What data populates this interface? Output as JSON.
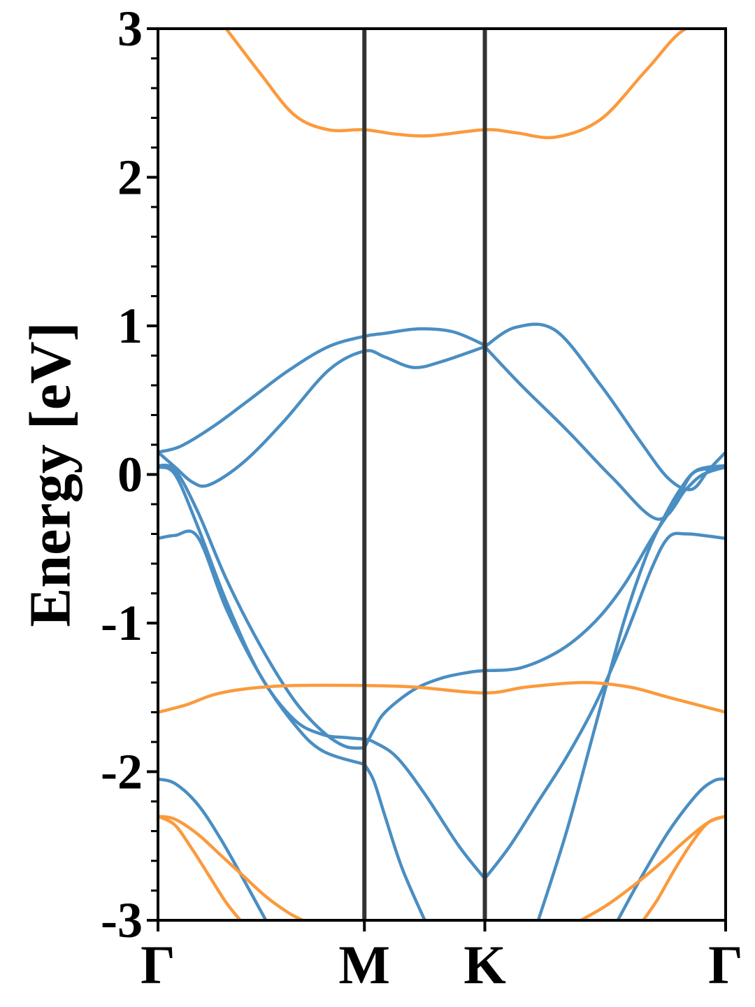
{
  "chart_data": {
    "type": "line",
    "title": "",
    "xlabel": "",
    "ylabel": "Energy [eV]",
    "ylim": [
      -3,
      3
    ],
    "xlim": [
      0,
      1
    ],
    "grid": false,
    "legend": "none",
    "high_symmetry_points": [
      {
        "label": "Γ",
        "x": 0.0
      },
      {
        "label": "M",
        "x": 0.3636
      },
      {
        "label": "K",
        "x": 0.5758
      },
      {
        "label": "Γ",
        "x": 1.0
      }
    ],
    "yticks": [
      {
        "value": 3,
        "label": "3"
      },
      {
        "value": 2,
        "label": "2"
      },
      {
        "value": 1,
        "label": "1"
      },
      {
        "value": 0,
        "label": "0"
      },
      {
        "value": -1,
        "label": "-1"
      },
      {
        "value": -2,
        "label": "-2"
      },
      {
        "value": -3,
        "label": "-3"
      }
    ],
    "colors": {
      "blue_bands": "#4a8ec2",
      "orange_bands": "#fb9a3c",
      "kpath_lines": "#333333",
      "axes": "#000000"
    },
    "series": [
      {
        "color": "blue",
        "x": [
          0,
          0.03,
          0.06,
          0.09,
          0.15,
          0.22,
          0.3,
          0.3636,
          0.4,
          0.45,
          0.5,
          0.5758
        ],
        "y": [
          0.15,
          0.05,
          -0.05,
          -0.07,
          0.08,
          0.35,
          0.7,
          0.83,
          0.79,
          0.72,
          0.76,
          0.86
        ]
      },
      {
        "color": "blue",
        "x": [
          0,
          0.04,
          0.1,
          0.16,
          0.23,
          0.3,
          0.3636,
          0.4,
          0.46,
          0.52,
          0.5758
        ],
        "y": [
          0.15,
          0.19,
          0.33,
          0.5,
          0.7,
          0.86,
          0.93,
          0.95,
          0.98,
          0.96,
          0.87
        ]
      },
      {
        "color": "blue",
        "x": [
          0,
          0.03,
          0.07,
          0.12,
          0.18,
          0.24,
          0.29,
          0.33,
          0.3636
        ],
        "y": [
          0.06,
          0.03,
          -0.25,
          -0.7,
          -1.15,
          -1.52,
          -1.73,
          -1.83,
          -1.84
        ]
      },
      {
        "color": "blue",
        "x": [
          0,
          0.03,
          0.07,
          0.12,
          0.18,
          0.24,
          0.29,
          0.33,
          0.3636
        ],
        "y": [
          0.05,
          0.0,
          -0.35,
          -0.85,
          -1.35,
          -1.65,
          -1.75,
          -1.77,
          -1.78
        ]
      },
      {
        "color": "blue",
        "x": [
          0,
          0.03,
          0.07,
          0.12,
          0.18,
          0.24,
          0.29,
          0.3636
        ],
        "y": [
          -0.43,
          -0.41,
          -0.42,
          -0.9,
          -1.35,
          -1.68,
          -1.86,
          -1.95
        ]
      },
      {
        "color": "blue",
        "x": [
          0.3636,
          0.38,
          0.4,
          0.45,
          0.5,
          0.55,
          0.5758
        ],
        "y": [
          -1.84,
          -1.72,
          -1.6,
          -1.45,
          -1.37,
          -1.33,
          -1.32
        ]
      },
      {
        "color": "blue",
        "x": [
          0.3636,
          0.38,
          0.42,
          0.47,
          0.53,
          0.5758
        ],
        "y": [
          -1.78,
          -1.8,
          -1.9,
          -2.15,
          -2.5,
          -2.72
        ]
      },
      {
        "color": "blue",
        "x": [
          0.3636,
          0.38,
          0.4,
          0.43,
          0.47
        ],
        "y": [
          -1.95,
          -2.06,
          -2.3,
          -2.65,
          -3.0
        ]
      },
      {
        "color": "blue",
        "x": [
          0.5758,
          0.63,
          0.7,
          0.78,
          0.85,
          0.9,
          0.94,
          0.97,
          1.0
        ],
        "y": [
          0.86,
          0.99,
          0.97,
          0.6,
          0.22,
          -0.03,
          -0.1,
          0.03,
          0.15
        ]
      },
      {
        "color": "blue",
        "x": [
          0.5758,
          0.64,
          0.72,
          0.8,
          0.88,
          0.93,
          0.96,
          1.0
        ],
        "y": [
          0.86,
          0.6,
          0.3,
          -0.02,
          -0.3,
          -0.1,
          0.0,
          0.05
        ]
      },
      {
        "color": "blue",
        "x": [
          0.5758,
          0.64,
          0.71,
          0.77,
          0.82,
          0.87,
          0.91,
          0.94,
          0.97,
          1.0
        ],
        "y": [
          -1.32,
          -1.3,
          -1.18,
          -0.99,
          -0.75,
          -0.43,
          -0.2,
          0.0,
          0.04,
          0.05
        ]
      },
      {
        "color": "blue",
        "x": [
          0.5758,
          0.62,
          0.67,
          0.72,
          0.77,
          0.82,
          0.87,
          0.9,
          0.93,
          0.96,
          1.0
        ],
        "y": [
          -2.72,
          -2.5,
          -2.2,
          -1.9,
          -1.55,
          -1.12,
          -0.63,
          -0.42,
          -0.4,
          -0.41,
          -0.43
        ]
      },
      {
        "color": "blue",
        "x": [
          0.67,
          0.72,
          0.77,
          0.82,
          0.86,
          0.89,
          0.92,
          0.95,
          1.0
        ],
        "y": [
          -3.0,
          -2.4,
          -1.7,
          -1.0,
          -0.55,
          -0.3,
          -0.1,
          0.03,
          0.06
        ]
      },
      {
        "color": "blue",
        "x": [
          0,
          0.03,
          0.07,
          0.11,
          0.15,
          0.19
        ],
        "y": [
          -2.05,
          -2.08,
          -2.22,
          -2.45,
          -2.72,
          -3.0
        ]
      },
      {
        "color": "blue",
        "x": [
          0.81,
          0.85,
          0.9,
          0.95,
          0.98,
          1.0
        ],
        "y": [
          -3.0,
          -2.72,
          -2.4,
          -2.15,
          -2.06,
          -2.05
        ]
      },
      {
        "color": "orange",
        "x": [
          0.12,
          0.18,
          0.24,
          0.3,
          0.3636,
          0.42,
          0.48,
          0.5758,
          0.63,
          0.7,
          0.78,
          0.86,
          0.93,
          1.0
        ],
        "y": [
          3.0,
          2.7,
          2.42,
          2.32,
          2.32,
          2.29,
          2.28,
          2.32,
          2.3,
          2.27,
          2.39,
          2.72,
          3.0,
          3.0
        ]
      },
      {
        "color": "orange",
        "x": [
          0,
          0.05,
          0.1,
          0.16,
          0.24,
          0.3636,
          0.45,
          0.5758,
          0.65,
          0.75,
          0.83,
          0.9,
          1.0
        ],
        "y": [
          -1.6,
          -1.55,
          -1.48,
          -1.44,
          -1.42,
          -1.42,
          -1.43,
          -1.47,
          -1.43,
          -1.4,
          -1.43,
          -1.5,
          -1.6
        ]
      },
      {
        "color": "orange",
        "x": [
          0,
          0.03,
          0.07,
          0.11,
          0.15,
          0.19,
          0.23,
          0.255
        ],
        "y": [
          -2.3,
          -2.32,
          -2.42,
          -2.56,
          -2.7,
          -2.84,
          -2.95,
          -3.0
        ]
      },
      {
        "color": "orange",
        "x": [
          0,
          0.03,
          0.06,
          0.09,
          0.12,
          0.145
        ],
        "y": [
          -2.3,
          -2.36,
          -2.52,
          -2.7,
          -2.88,
          -3.0
        ]
      },
      {
        "color": "orange",
        "x": [
          0.745,
          0.79,
          0.84,
          0.89,
          0.93,
          0.97,
          1.0
        ],
        "y": [
          -3.0,
          -2.9,
          -2.76,
          -2.6,
          -2.46,
          -2.34,
          -2.3
        ]
      },
      {
        "color": "orange",
        "x": [
          0.855,
          0.88,
          0.91,
          0.94,
          0.97,
          1.0
        ],
        "y": [
          -3.0,
          -2.86,
          -2.66,
          -2.48,
          -2.34,
          -2.3
        ]
      }
    ]
  }
}
